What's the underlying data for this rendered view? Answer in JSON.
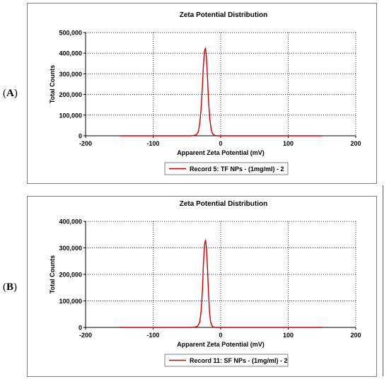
{
  "panels": [
    {
      "letter": "A",
      "letter_open": "(",
      "letter_close": ")"
    },
    {
      "letter": "B",
      "letter_open": "(",
      "letter_close": ")"
    }
  ],
  "chart_data": [
    {
      "type": "line",
      "title": "Zeta Potential Distribution",
      "xlabel": "Apparent Zeta Potential (mV)",
      "ylabel": "Total Counts",
      "xlim": [
        -200,
        200
      ],
      "ylim": [
        0,
        500000
      ],
      "xticks": [
        -200,
        -100,
        0,
        100,
        200
      ],
      "xtick_labels": [
        "-200",
        "-100",
        "0",
        "100",
        "200"
      ],
      "yticks": [
        0,
        100000,
        200000,
        300000,
        400000,
        500000
      ],
      "ytick_labels": [
        "0",
        "100,000",
        "200,000",
        "300,000",
        "400,000",
        "500,000"
      ],
      "grid": true,
      "legend": "bottom-center",
      "series": [
        {
          "name": "Record 5: TF NPs - (1mg/ml) - 2",
          "color": "#cc0000",
          "x": [
            -150,
            -60,
            -45,
            -40,
            -36,
            -33,
            -31,
            -29,
            -27,
            -25.5,
            -24,
            -22.5,
            -21,
            -19.5,
            -18,
            -16,
            -14,
            -12,
            -9,
            -5,
            0,
            30,
            150
          ],
          "y": [
            0,
            0,
            0,
            1000,
            5000,
            20000,
            60000,
            130000,
            240000,
            340000,
            410000,
            425000,
            380000,
            280000,
            170000,
            80000,
            30000,
            10000,
            2000,
            0,
            0,
            0,
            0
          ]
        }
      ]
    },
    {
      "type": "line",
      "title": "Zeta Potential Distribution",
      "xlabel": "Apparent Zeta Potential (mV)",
      "ylabel": "Total Counts",
      "xlim": [
        -200,
        200
      ],
      "ylim": [
        0,
        400000
      ],
      "xticks": [
        -200,
        -100,
        0,
        100,
        200
      ],
      "xtick_labels": [
        "-200",
        "-100",
        "0",
        "100",
        "200"
      ],
      "yticks": [
        0,
        100000,
        200000,
        300000,
        400000
      ],
      "ytick_labels": [
        "0",
        "100,000",
        "200,000",
        "300,000",
        "400,000"
      ],
      "grid": true,
      "legend": "bottom-center",
      "series": [
        {
          "name": "Record 11: SF NPs - (1mg/ml) - 2",
          "color": "#cc0000",
          "x": [
            -150,
            -60,
            -45,
            -38,
            -34,
            -31,
            -29,
            -27,
            -25.5,
            -24,
            -22.5,
            -21,
            -19.5,
            -18,
            -16.5,
            -15,
            -13,
            -11,
            -8,
            -4,
            0,
            30,
            150
          ],
          "y": [
            0,
            0,
            0,
            1000,
            5000,
            20000,
            60000,
            140000,
            240000,
            310000,
            330000,
            300000,
            220000,
            130000,
            60000,
            22000,
            6000,
            1500,
            0,
            0,
            0,
            0,
            0
          ]
        }
      ]
    }
  ]
}
